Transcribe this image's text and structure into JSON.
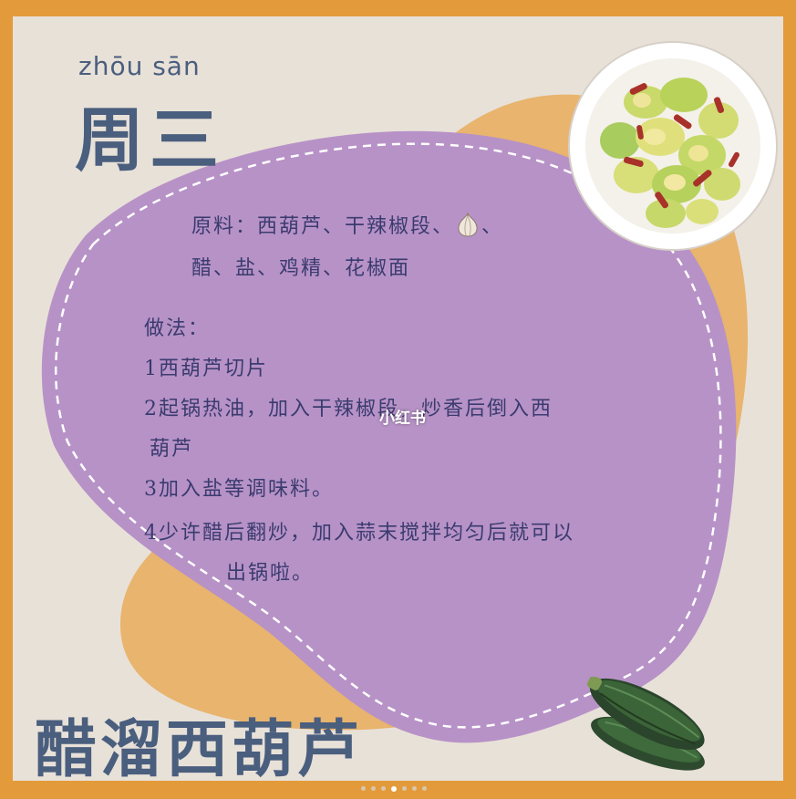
{
  "header": {
    "pinyin": "zhōu  sān",
    "day": "周三"
  },
  "recipe": {
    "ingredients_line1_prefix": "原料：西葫芦、干辣椒段、",
    "ingredients_line1_suffix": "、",
    "ingredients_line2": "醋、盐、鸡精、花椒面",
    "method_heading": "做法：",
    "steps": [
      "1西葫芦切片",
      "2起锅热油，加入干辣椒段，炒香后倒入西",
      "葫芦",
      "3加入盐等调味料。",
      "4少许醋后翻炒，加入蒜末搅拌均匀后就可以",
      "出锅啦。"
    ]
  },
  "dish_name": "醋溜西葫芦",
  "watermark": "小红书",
  "icons": {
    "garlic": "garlic-icon",
    "plate": "dish-photo",
    "zucchini": "zucchini-illustration"
  },
  "carousel": {
    "total": 7,
    "active_index": 3
  },
  "colors": {
    "border": "#e39a3b",
    "card": "#e8e1d8",
    "orange_blob": "#e8b46e",
    "purple_blob": "#b792c7",
    "title": "#4a5e7e",
    "text": "#3a3b6e"
  }
}
